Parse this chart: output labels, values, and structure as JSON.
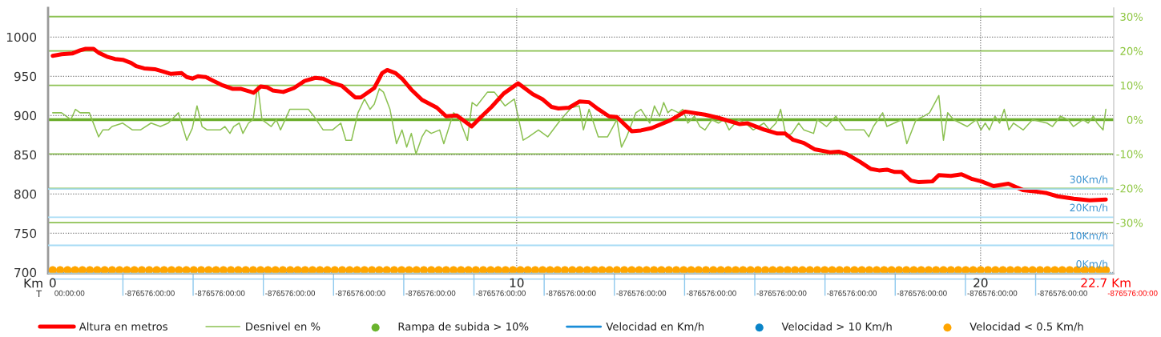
{
  "chart_data": {
    "type": "line",
    "xlabel": "Km",
    "x2label": "T",
    "xlim": [
      -0.1,
      22.87
    ],
    "xticks": [
      0,
      10,
      20,
      {
        "value": 22.7,
        "label": "22.7 Km"
      }
    ],
    "annotations": [
      "00:00:00",
      "-876576:00:00",
      "-876576:00:00",
      "-876576:00:00",
      "-876576:00:00",
      "-876576:00:00",
      "-876576:00:00",
      "-876576:00:00",
      "-876576:00:00",
      "-876576:00:00",
      "-876576:00:00",
      "-876576:00:00",
      "-876576:00:00",
      "-876576:00:00",
      "-876576:00:00",
      "-876576:00:00"
    ],
    "ylim": [
      698.6,
      1037
    ],
    "yticks": [
      700,
      750,
      800,
      850,
      900,
      950,
      1000
    ],
    "y2lim": [
      -44.8,
      32.5
    ],
    "y2ticks": [
      {
        "value": 30,
        "label": "30%"
      },
      {
        "value": 20,
        "label": "20%"
      },
      {
        "value": 10,
        "label": "10%"
      },
      {
        "value": 0,
        "label": "0%"
      },
      {
        "value": -10,
        "label": "-10%"
      },
      {
        "value": -20,
        "label": "-20%"
      },
      {
        "value": -30,
        "label": "-30%"
      }
    ],
    "y3lim": [
      0,
      94.3
    ],
    "y3ticks": [
      {
        "value": 0,
        "label": "0Km/h"
      },
      {
        "value": 10,
        "label": "10Km/h"
      },
      {
        "value": 20,
        "label": "20Km/h"
      },
      {
        "value": 30,
        "label": "30Km/h"
      }
    ],
    "grid": true,
    "legend": "bottom",
    "ref_lines": [
      {
        "axis": "y2",
        "value": 0,
        "color": "#6aad2a"
      }
    ],
    "series": [
      {
        "name": "Altura en metros",
        "color": "#ff0000",
        "x": [
          0,
          0.19,
          0.42,
          0.59,
          0.71,
          0.88,
          0.99,
          1.17,
          1.34,
          1.51,
          1.69,
          1.8,
          1.97,
          2.2,
          2.38,
          2.55,
          2.78,
          2.89,
          3.01,
          3.13,
          3.3,
          3.47,
          3.64,
          3.87,
          4.05,
          4.28,
          4.33,
          4.48,
          4.62,
          4.74,
          4.97,
          5.2,
          5.43,
          5.66,
          5.83,
          6.0,
          6.23,
          6.52,
          6.64,
          6.93,
          7.1,
          7.21,
          7.39,
          7.53,
          7.73,
          7.96,
          8.28,
          8.48,
          8.71,
          9.03,
          9.23,
          9.46,
          9.72,
          10.03,
          10.35,
          10.55,
          10.75,
          10.9,
          11.13,
          11.36,
          11.56,
          11.76,
          11.99,
          12.16,
          12.48,
          12.68,
          12.91,
          13.32,
          13.63,
          14.06,
          14.35,
          14.81,
          14.98,
          15.33,
          15.62,
          15.79,
          15.96,
          16.19,
          16.42,
          16.77,
          16.94,
          17.11,
          17.4,
          17.63,
          17.81,
          17.98,
          18.15,
          18.3,
          18.5,
          18.67,
          18.96,
          19.1,
          19.36,
          19.59,
          19.82,
          20.02,
          20.28,
          20.6,
          20.91,
          21.2,
          21.43,
          21.66,
          22.01,
          22.35,
          22.7
        ],
        "values": [
          976,
          978,
          979,
          983,
          985,
          985,
          980,
          975,
          972,
          971,
          967,
          963,
          960,
          959,
          956,
          953,
          954,
          949,
          947,
          950,
          949,
          944,
          939,
          934,
          934,
          930,
          929,
          937,
          936,
          932,
          930,
          935,
          944,
          948,
          947,
          942,
          938,
          923,
          923,
          935,
          954,
          958,
          954,
          947,
          933,
          920,
          910,
          899,
          900,
          886,
          898,
          911,
          928,
          941,
          927,
          921,
          911,
          909,
          910,
          918,
          917,
          908,
          899,
          898,
          880,
          881,
          884,
          894,
          905,
          901,
          897,
          889,
          890,
          882,
          877,
          877,
          869,
          865,
          857,
          853,
          854,
          851,
          841,
          832,
          830,
          831,
          828,
          828,
          817,
          815,
          816,
          824,
          823,
          825,
          819,
          816,
          810,
          813,
          805,
          803,
          801,
          797,
          794,
          792,
          793
        ]
      },
      {
        "name": "Desnivel en %",
        "axis": "y2",
        "color": "#8cc152",
        "x": [
          0,
          0.19,
          0.39,
          0.49,
          0.59,
          0.79,
          0.99,
          1.08,
          1.2,
          1.28,
          1.51,
          1.72,
          1.89,
          2.12,
          2.32,
          2.49,
          2.71,
          2.89,
          3.01,
          3.11,
          3.22,
          3.33,
          3.61,
          3.71,
          3.82,
          3.9,
          4.02,
          4.1,
          4.22,
          4.32,
          4.42,
          4.51,
          4.71,
          4.82,
          4.91,
          5.11,
          5.51,
          5.63,
          5.83,
          6.03,
          6.21,
          6.32,
          6.44,
          6.58,
          6.72,
          6.84,
          6.93,
          7.04,
          7.13,
          7.27,
          7.41,
          7.53,
          7.63,
          7.73,
          7.83,
          7.96,
          8.05,
          8.16,
          8.34,
          8.43,
          8.64,
          8.74,
          8.94,
          9.04,
          9.14,
          9.37,
          9.52,
          9.75,
          9.95,
          10.14,
          10.26,
          10.47,
          10.67,
          10.95,
          11.18,
          11.35,
          11.44,
          11.56,
          11.76,
          11.96,
          12.16,
          12.26,
          12.37,
          12.57,
          12.68,
          12.87,
          12.97,
          13.08,
          13.17,
          13.26,
          13.34,
          13.49,
          13.58,
          13.69,
          13.83,
          13.95,
          14.06,
          14.21,
          14.35,
          14.47,
          14.58,
          14.78,
          14.93,
          15.1,
          15.33,
          15.45,
          15.59,
          15.69,
          15.81,
          15.93,
          16.08,
          16.19,
          16.4,
          16.48,
          16.68,
          16.88,
          17.09,
          17.49,
          17.59,
          17.69,
          17.89,
          17.98,
          18.3,
          18.41,
          18.61,
          18.78,
          18.9,
          19.1,
          19.2,
          19.29,
          19.42,
          19.71,
          19.91,
          20.01,
          20.1,
          20.19,
          20.31,
          20.41,
          20.51,
          20.61,
          20.71,
          20.92,
          21.12,
          21.43,
          21.55,
          21.72,
          21.89,
          22,
          22.21,
          22.32,
          22.43,
          22.51,
          22.64,
          22.7
        ],
        "values": [
          2,
          2,
          0,
          3,
          2,
          2,
          -5,
          -3,
          -3,
          -2,
          -1,
          -3,
          -3,
          -1,
          -2,
          -1,
          2,
          -6,
          -2.5,
          4,
          -2,
          -3,
          -3,
          -2,
          -4,
          -2,
          -1,
          -4,
          -1,
          0,
          10,
          0,
          -2,
          0,
          -3,
          3,
          3,
          1,
          -3,
          -3,
          -1,
          -6,
          -6,
          2,
          6,
          3,
          4.5,
          9,
          8,
          3,
          -7,
          -3,
          -8,
          -4,
          -10,
          -5,
          -3,
          -4,
          -3,
          -7,
          2,
          1,
          -6,
          5,
          4,
          8,
          8,
          4,
          6,
          -6,
          -5,
          -3,
          -5,
          0,
          3.5,
          4,
          -3,
          3,
          -5,
          -5,
          0,
          -8,
          -5,
          2,
          3,
          -1,
          4,
          1,
          5,
          2,
          3,
          2,
          3,
          -1,
          1,
          -2,
          -3,
          0,
          -1,
          0,
          -3,
          0,
          -1,
          -3,
          -1,
          -3,
          -1,
          3,
          -5,
          -4,
          -1,
          -3,
          -4,
          0,
          -2,
          1,
          -3,
          -3,
          -5,
          -2,
          2,
          -2,
          0,
          -7,
          0,
          1,
          2,
          7,
          -6,
          2,
          0,
          -2,
          0,
          -3,
          -1,
          -3,
          1,
          -1,
          3,
          -3,
          -1,
          -3,
          0,
          -1,
          -2,
          1,
          0,
          -2,
          0,
          -1,
          1,
          -1,
          -3,
          3
        ]
      },
      {
        "name": "Rampa de subida > 10%",
        "type": "scatter",
        "axis": "y2",
        "color": "#6ab42d"
      },
      {
        "name": "Velocidad en Km/h",
        "axis": "y3",
        "color": "#1a8dd8"
      },
      {
        "name": "Velocidad > 10 Km/h",
        "type": "scatter",
        "axis": "y3",
        "color": "#0a84c8"
      },
      {
        "name": "Velocidad < 0.5 Km/h",
        "type": "scatter",
        "color": "#ffa500",
        "x": [
          0,
          0.16,
          0.32,
          0.48,
          0.64,
          0.8,
          0.96,
          1.12,
          1.28,
          1.44,
          1.6,
          1.76,
          1.92,
          2.08,
          2.24,
          2.4,
          2.56,
          2.72,
          2.88,
          3.04,
          3.2,
          3.36,
          3.52,
          3.68,
          3.84,
          4,
          4.16,
          4.32,
          4.48,
          4.64,
          4.8,
          4.96,
          5.12,
          5.28,
          5.44,
          5.6,
          5.76,
          5.92,
          6.08,
          6.24,
          6.4,
          6.56,
          6.72,
          6.88,
          7.04,
          7.2,
          7.36,
          7.52,
          7.68,
          7.84,
          8,
          8.16,
          8.32,
          8.48,
          8.64,
          8.8,
          8.96,
          9.12,
          9.28,
          9.44,
          9.6,
          9.76,
          9.92,
          10.08,
          10.24,
          10.4,
          10.56,
          10.72,
          10.88,
          11.04,
          11.2,
          11.36,
          11.52,
          11.68,
          11.84,
          12,
          12.16,
          12.32,
          12.48,
          12.64,
          12.8,
          12.96,
          13.12,
          13.28,
          13.44,
          13.6,
          13.76,
          13.92,
          14.08,
          14.24,
          14.4,
          14.56,
          14.72,
          14.88,
          15.04,
          15.2,
          15.36,
          15.52,
          15.68,
          15.84,
          16,
          16.16,
          16.32,
          16.48,
          16.64,
          16.8,
          16.96,
          17.12,
          17.28,
          17.44,
          17.6,
          17.76,
          17.92,
          18.08,
          18.24,
          18.4,
          18.56,
          18.72,
          18.88,
          19.04,
          19.2,
          19.36,
          19.52,
          19.68,
          19.84,
          20,
          20.16,
          20.32,
          20.48,
          20.64,
          20.8,
          20.96,
          21.12,
          21.28,
          21.44,
          21.6,
          21.76,
          21.92,
          22.08,
          22.24,
          22.4,
          22.56,
          22.7
        ],
        "values": [
          703,
          703,
          703,
          703,
          703,
          703,
          703,
          703,
          703,
          703,
          703,
          703,
          703,
          703,
          703,
          703,
          703,
          703,
          703,
          703,
          703,
          703,
          703,
          703,
          703,
          703,
          703,
          703,
          703,
          703,
          703,
          703,
          703,
          703,
          703,
          703,
          703,
          703,
          703,
          703,
          703,
          703,
          703,
          703,
          703,
          703,
          703,
          703,
          703,
          703,
          703,
          703,
          703,
          703,
          703,
          703,
          703,
          703,
          703,
          703,
          703,
          703,
          703,
          703,
          703,
          703,
          703,
          703,
          703,
          703,
          703,
          703,
          703,
          703,
          703,
          703,
          703,
          703,
          703,
          703,
          703,
          703,
          703,
          703,
          703,
          703,
          703,
          703,
          703,
          703,
          703,
          703,
          703,
          703,
          703,
          703,
          703,
          703,
          703,
          703,
          703,
          703,
          703,
          703,
          703,
          703,
          703,
          703,
          703,
          703,
          703,
          703,
          703,
          703,
          703,
          703,
          703,
          703,
          703,
          703,
          703,
          703,
          703,
          703,
          703,
          703,
          703,
          703,
          703,
          703,
          703,
          703,
          703,
          703,
          703,
          703,
          703,
          703,
          703,
          703,
          703,
          703,
          703
        ]
      }
    ]
  }
}
